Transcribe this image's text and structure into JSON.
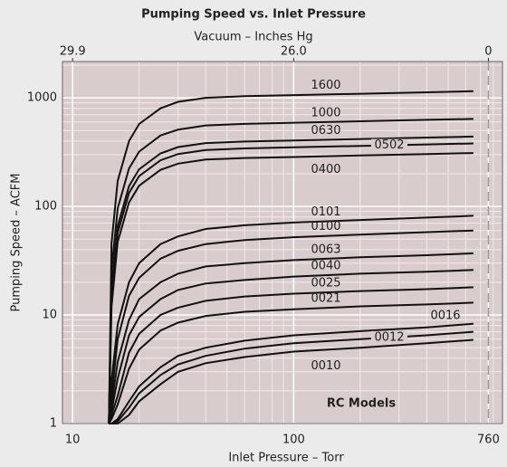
{
  "chart_data": {
    "type": "line",
    "title": "Pumping Speed vs. Inlet Pressure",
    "x2_label": "Vacuum – Inches Hg",
    "xlabel": "Inlet Pressure – Torr",
    "ylabel": "Pumping Speed – ACFM",
    "annotation": "RC Models",
    "x_log": true,
    "y_log": true,
    "grid": true,
    "xlim": [
      9,
      880
    ],
    "ylim": [
      1,
      2160
    ],
    "xticks": [
      10,
      100,
      760
    ],
    "x2ticks": [
      {
        "value": 10,
        "label": "29.9"
      },
      {
        "value": 100,
        "label": "26.0"
      },
      {
        "value": 760,
        "label": "0"
      }
    ],
    "yticks": [
      1,
      10,
      100,
      1000
    ],
    "x_minor_ticks": [
      20,
      30,
      40,
      50,
      60,
      70,
      80,
      90,
      200,
      300,
      400,
      500,
      600,
      700,
      800
    ],
    "y_minor_ticks": [
      2,
      3,
      4,
      5,
      6,
      7,
      8,
      9,
      20,
      30,
      40,
      50,
      60,
      70,
      80,
      90,
      200,
      300,
      400,
      500,
      600,
      700,
      800,
      900,
      2000
    ],
    "vline": 760,
    "x": [
      14.6,
      15,
      16,
      18,
      20,
      25,
      30,
      40,
      60,
      100,
      200,
      400,
      650
    ],
    "series": [
      {
        "name": "1600",
        "color": "#111111",
        "values": [
          1,
          46,
          172,
          400,
          575,
          800,
          920,
          1000,
          1035,
          1060,
          1090,
          1125,
          1150
        ]
      },
      {
        "name": "1000",
        "color": "#111111",
        "values": [
          1,
          26,
          96,
          224,
          320,
          450,
          510,
          557,
          576,
          590,
          608,
          627,
          640
        ]
      },
      {
        "name": "0630",
        "color": "#111111",
        "values": [
          1,
          18,
          66,
          154,
          220,
          308,
          352,
          383,
          396,
          405,
          418,
          431,
          440
        ]
      },
      {
        "name": "0502",
        "color": "#111111",
        "values": [
          1,
          15,
          57,
          133,
          190,
          266,
          304,
          331,
          342,
          350,
          361,
          372,
          380
        ]
      },
      {
        "name": "0400",
        "color": "#111111",
        "values": [
          1,
          12,
          47,
          109,
          155,
          217,
          248,
          270,
          279,
          285,
          295,
          304,
          310
        ]
      },
      {
        "name": "0101",
        "color": "#111111",
        "values": [
          1,
          2.5,
          8.2,
          20,
          30,
          45,
          53,
          62,
          67,
          71,
          75,
          79,
          82
        ]
      },
      {
        "name": "0100",
        "color": "#111111",
        "values": [
          1,
          1.8,
          6,
          15,
          22,
          33,
          39,
          45,
          49,
          52,
          55,
          58,
          60
        ]
      },
      {
        "name": "0063",
        "color": "#111111",
        "values": [
          1,
          1.5,
          3.7,
          9,
          14,
          20,
          24,
          28,
          30,
          32,
          34,
          35.5,
          37
        ]
      },
      {
        "name": "0040",
        "color": "#111111",
        "values": [
          1,
          1.3,
          2.6,
          6.5,
          9.6,
          14,
          17,
          19.5,
          21,
          22.6,
          24,
          25,
          26
        ]
      },
      {
        "name": "0025",
        "color": "#111111",
        "values": [
          1,
          1.2,
          1.8,
          4.5,
          6.7,
          10,
          11.7,
          13.5,
          14.8,
          15.7,
          16.6,
          17.3,
          18
        ]
      },
      {
        "name": "0021",
        "color": "#111111",
        "values": [
          1,
          1.1,
          1.5,
          3.2,
          4.8,
          7.2,
          8.5,
          9.8,
          10.7,
          11.3,
          12,
          12.5,
          13
        ]
      },
      {
        "name": "0016",
        "color": "#111111",
        "values": [
          1,
          1,
          1.1,
          1.6,
          2.2,
          3.3,
          4.2,
          5,
          5.8,
          6.5,
          7.1,
          7.7,
          8.3
        ]
      },
      {
        "name": "0012",
        "color": "#111111",
        "values": [
          1,
          1,
          1.05,
          1.4,
          1.9,
          2.8,
          3.5,
          4.2,
          4.9,
          5.5,
          6,
          6.5,
          7
        ]
      },
      {
        "name": "0010",
        "color": "#111111",
        "values": [
          1,
          1,
          1,
          1.2,
          1.6,
          2.3,
          3,
          3.6,
          4.1,
          4.6,
          5,
          5.5,
          5.9
        ]
      }
    ]
  }
}
